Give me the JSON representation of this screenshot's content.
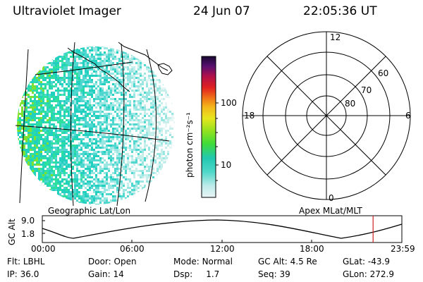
{
  "header": {
    "instrument": "Ultraviolet Imager",
    "date": "24 Jun 07",
    "time": "22:05:36 UT"
  },
  "colorbar": {
    "unit_label": "photon cm⁻²s⁻¹",
    "ticks": [
      "100",
      "10"
    ]
  },
  "polar_plot": {
    "mlt_labels": [
      "12",
      "18",
      "6",
      "0"
    ],
    "lat_labels": [
      "60",
      "70",
      "80"
    ]
  },
  "captions": {
    "left": "Geographic Lat/Lon",
    "right": "Apex MLat/MLT"
  },
  "altitude_plot": {
    "ylabel": "GC Alt",
    "yticks": [
      "9.0",
      "1.8"
    ],
    "xticks": [
      "00:00",
      "06:00",
      "12:00",
      "18:00",
      "23:59"
    ],
    "current_time_fraction": 0.92
  },
  "footer": {
    "row1": [
      {
        "label": "Flt:",
        "value": "LBHL"
      },
      {
        "label": "Door:",
        "value": "Open"
      },
      {
        "label": "Mode:",
        "value": "Normal"
      },
      {
        "label": "GC Alt:",
        "value": "4.5 Re"
      },
      {
        "label": "GLat:",
        "value": "-43.9"
      }
    ],
    "row2": [
      {
        "label": "IP:",
        "value": "36.0"
      },
      {
        "label": "Gain:",
        "value": "14"
      },
      {
        "label": "Dsp:",
        "value": "1.7"
      },
      {
        "label": "Seq:",
        "value": "39"
      },
      {
        "label": "GLon:",
        "value": "272.9"
      }
    ]
  },
  "colors": {
    "red_marker": "#cc2222"
  }
}
